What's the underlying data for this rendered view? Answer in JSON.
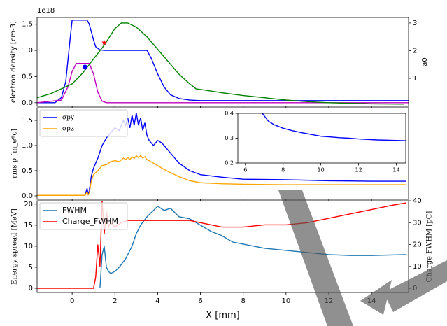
{
  "chart_data": [
    {
      "type": "line",
      "ylabel": "electron density [cm-3]",
      "ylabel_color": "#0000ff",
      "y_offset_label": "1e18",
      "y2label": "a0",
      "y2label_color": "#008000",
      "xlim": [
        -1.64,
        15.73
      ],
      "ylim": [
        -0.07,
        1.63
      ],
      "y2lim": [
        -0.01,
        3.2
      ],
      "yticks": [
        {
          "value": 0,
          "label": "0.0"
        },
        0.5,
        {
          "value": 1,
          "label": "1.0"
        },
        1.5
      ],
      "y2ticks": [
        1,
        2,
        3
      ],
      "series": [
        {
          "color": "#0000ff",
          "x": [
            -1.64,
            -0.8,
            -0.5,
            -0.3,
            -0.1,
            0.0,
            0.7,
            0.8,
            0.9,
            1.0,
            1.1,
            1.3,
            1.5,
            3.5,
            3.7,
            4.0,
            4.3,
            4.6,
            5.0,
            5.5,
            6.0,
            15.73
          ],
          "values": [
            0,
            0,
            0.1,
            0.4,
            1.2,
            1.58,
            1.58,
            1.5,
            1.35,
            1.2,
            1.07,
            1.01,
            1.0,
            1.0,
            0.85,
            0.55,
            0.3,
            0.15,
            0.08,
            0.05,
            0.04,
            0.04
          ]
        },
        {
          "color": "#bf00bf",
          "x": [
            -1.64,
            -0.5,
            -0.2,
            0.0,
            0.2,
            0.8,
            1.0,
            1.2,
            1.4,
            1.6,
            15.73
          ],
          "values": [
            0,
            0.05,
            0.3,
            0.6,
            0.75,
            0.75,
            0.55,
            0.2,
            0.03,
            0,
            0
          ]
        },
        {
          "color": "#008000",
          "axis": "y2",
          "x": [
            -1.64,
            -1,
            0,
            0.5,
            1,
            1.5,
            2,
            2.3,
            2.6,
            3,
            3.5,
            4,
            4.5,
            5,
            5.5,
            5.8,
            6,
            7,
            8,
            9,
            10,
            11,
            12,
            13,
            14,
            15.5
          ],
          "values": [
            0.3,
            0.45,
            0.8,
            1.2,
            1.7,
            2.2,
            2.8,
            3.0,
            3.0,
            2.85,
            2.5,
            2.05,
            1.6,
            1.15,
            0.8,
            0.62,
            0.6,
            0.48,
            0.38,
            0.3,
            0.22,
            0.16,
            0.12,
            0.1,
            0.08,
            0.07
          ]
        }
      ],
      "markers": [
        {
          "x": 0.6,
          "y": 0.68,
          "color": "#0000ff",
          "shape": "circle"
        },
        {
          "x": 1.5,
          "y": 1.15,
          "color": "#ff0000",
          "shape": "star"
        }
      ]
    },
    {
      "type": "line",
      "ylabel": "rms p [m_e*c]",
      "legend": "upper left",
      "xlim": [
        -1.64,
        15.73
      ],
      "ylim": [
        -0.07,
        1.75
      ],
      "yticks": [
        {
          "value": 0,
          "label": "0.0"
        },
        0.5,
        {
          "value": 1,
          "label": "1.0"
        },
        1.5
      ],
      "series": [
        {
          "name": "σpy",
          "color": "#0000ff",
          "x": [
            -1.64,
            0.6,
            0.7,
            0.75,
            0.8,
            0.9,
            1.0,
            1.2,
            1.4,
            1.6,
            1.8,
            2.0,
            2.2,
            2.4,
            2.5,
            2.6,
            2.7,
            2.8,
            2.9,
            3.0,
            3.1,
            3.2,
            3.3,
            3.4,
            3.5,
            3.6,
            3.8,
            4.0,
            4.2,
            4.5,
            5,
            5.5,
            6,
            7,
            8,
            10,
            12,
            14,
            15.6
          ],
          "values": [
            0.01,
            0.01,
            0.15,
            0.02,
            0.1,
            0.4,
            0.55,
            0.75,
            1.0,
            1.15,
            1.25,
            1.35,
            1.3,
            1.5,
            1.4,
            1.55,
            1.35,
            1.6,
            1.4,
            1.65,
            1.4,
            1.55,
            1.3,
            1.45,
            1.2,
            1.1,
            1.0,
            1.1,
            1.05,
            0.9,
            0.65,
            0.5,
            0.42,
            0.37,
            0.33,
            0.32,
            0.3,
            0.29,
            0.29
          ]
        },
        {
          "name": "σpz",
          "color": "#ffa500",
          "x": [
            -1.64,
            0.6,
            0.7,
            0.75,
            0.8,
            0.9,
            1.0,
            1.2,
            1.4,
            1.6,
            1.8,
            2.0,
            2.2,
            2.4,
            2.5,
            2.6,
            2.7,
            2.8,
            2.9,
            3.0,
            3.1,
            3.2,
            3.3,
            3.4,
            3.5,
            3.6,
            3.8,
            4.0,
            4.2,
            4.5,
            5,
            5.5,
            6,
            7,
            8,
            10,
            12,
            14,
            15.6
          ],
          "values": [
            0.01,
            0.01,
            0.08,
            0.02,
            0.05,
            0.3,
            0.42,
            0.5,
            0.6,
            0.62,
            0.68,
            0.7,
            0.68,
            0.75,
            0.72,
            0.76,
            0.72,
            0.78,
            0.74,
            0.8,
            0.76,
            0.8,
            0.75,
            0.78,
            0.72,
            0.7,
            0.65,
            0.6,
            0.55,
            0.48,
            0.38,
            0.3,
            0.26,
            0.24,
            0.23,
            0.22,
            0.22,
            0.22,
            0.22
          ]
        }
      ]
    },
    {
      "type": "line",
      "ylabel": "Energy spread [MeV]",
      "y2label": "Charge FWHM [pC]",
      "xlabel": "X [mm]",
      "legend": "upper left",
      "xlim": [
        -1.64,
        15.73
      ],
      "ylim": [
        -1,
        20.8
      ],
      "y2lim": [
        -1.9,
        40
      ],
      "xticks": [
        0,
        2,
        4,
        6,
        8,
        10,
        12,
        14
      ],
      "yticks": [
        0,
        5,
        10,
        15,
        20
      ],
      "y2ticks": [
        0,
        10,
        20,
        30,
        40
      ],
      "series": [
        {
          "name": "FWHM",
          "color": "#1f77b4",
          "x": [
            1.3,
            1.4,
            1.5,
            1.6,
            1.7,
            1.8,
            2.0,
            2.2,
            2.5,
            2.8,
            3.0,
            3.2,
            3.5,
            3.8,
            4.0,
            4.3,
            4.6,
            5.0,
            5.5,
            6.0,
            6.5,
            7,
            7.5,
            8,
            8.5,
            9,
            10,
            11,
            12,
            13,
            14,
            15.6
          ],
          "values": [
            0,
            8,
            10,
            5,
            4,
            3.5,
            4,
            5,
            7,
            10,
            13,
            15,
            17,
            18.5,
            19.5,
            18.5,
            19,
            17,
            16.5,
            15,
            13.5,
            12.5,
            11,
            10.5,
            10,
            9.5,
            9,
            8.5,
            8,
            7.8,
            7.8,
            8
          ]
        },
        {
          "name": "Charge_FWHM",
          "color": "#ff0000",
          "axis": "y2",
          "x": [
            -1.64,
            1.0,
            1.1,
            1.2,
            1.3,
            1.4,
            1.5,
            1.6,
            1.7,
            1.8,
            2.0,
            2.3,
            2.6,
            3.0,
            3.5,
            4.0,
            4.5,
            5,
            5.5,
            6,
            7,
            8,
            9,
            10,
            11,
            12,
            13,
            14,
            15,
            15.6
          ],
          "values": [
            0,
            0,
            5,
            20,
            10,
            40,
            25,
            35,
            28,
            30,
            28,
            30,
            31,
            31,
            31,
            31,
            31,
            31,
            31,
            30,
            28,
            28,
            29,
            29,
            30,
            32,
            34,
            36,
            38,
            39
          ]
        }
      ]
    },
    {
      "type": "line",
      "xlim": [
        5.6,
        14.5
      ],
      "ylim": [
        0.2,
        0.4
      ],
      "xticks": [
        6,
        8,
        10,
        12,
        14
      ],
      "yticks": [
        0.2,
        0.3,
        0.4
      ],
      "series": [
        {
          "color": "#0000ff",
          "x": [
            6.9,
            7.2,
            7.5,
            8,
            8.5,
            9,
            9.5,
            10,
            10.5,
            11,
            11.5,
            12,
            12.5,
            13,
            13.5,
            14,
            14.5
          ],
          "values": [
            0.4,
            0.37,
            0.355,
            0.34,
            0.33,
            0.322,
            0.315,
            0.308,
            0.305,
            0.302,
            0.3,
            0.297,
            0.295,
            0.293,
            0.292,
            0.291,
            0.29
          ]
        }
      ]
    }
  ]
}
